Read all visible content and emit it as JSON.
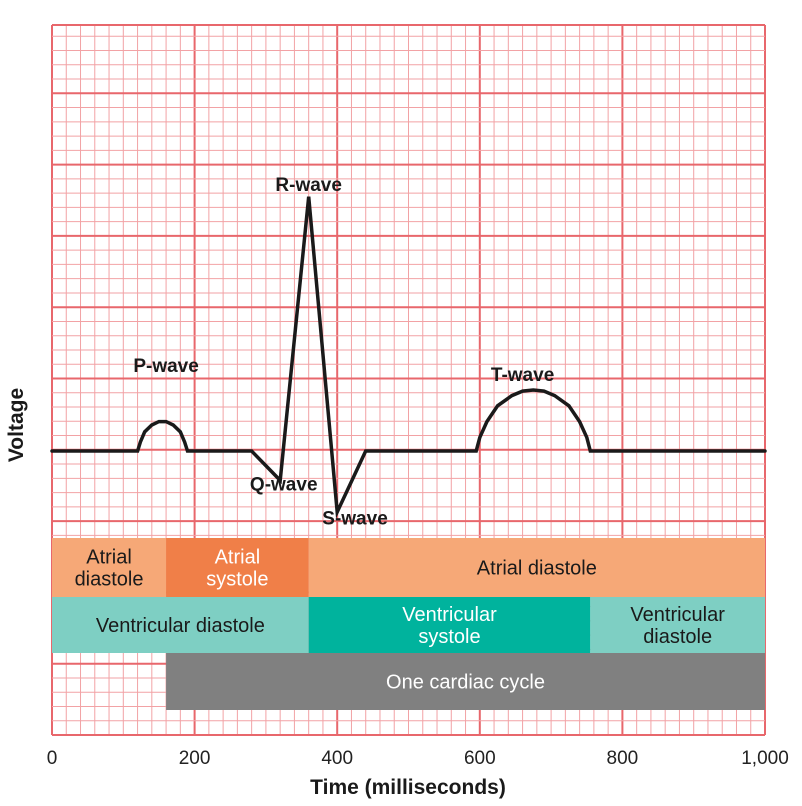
{
  "chart_data": {
    "type": "line",
    "title": "",
    "xlabel": "Time (milliseconds)",
    "ylabel": "Voltage",
    "xlim": [
      0,
      1000
    ],
    "ylim": [
      -10,
      16
    ],
    "grid": true,
    "x_ticks": [
      {
        "value": 0,
        "label": "0"
      },
      {
        "value": 200,
        "label": "200"
      },
      {
        "value": 400,
        "label": "400"
      },
      {
        "value": 600,
        "label": "600"
      },
      {
        "value": 800,
        "label": "800"
      },
      {
        "value": 1000,
        "label": "1,000"
      }
    ],
    "series": [
      {
        "name": "ECG trace",
        "points": [
          {
            "x": 0,
            "y": 0
          },
          {
            "x": 120,
            "y": 0
          },
          {
            "x": 124,
            "y": 0.8
          },
          {
            "x": 130,
            "y": 1.7
          },
          {
            "x": 140,
            "y": 2.3
          },
          {
            "x": 150,
            "y": 2.6
          },
          {
            "x": 160,
            "y": 2.6
          },
          {
            "x": 170,
            "y": 2.3
          },
          {
            "x": 180,
            "y": 1.7
          },
          {
            "x": 186,
            "y": 0.8
          },
          {
            "x": 190,
            "y": 0
          },
          {
            "x": 280,
            "y": 0
          },
          {
            "x": 320,
            "y": -2.6
          },
          {
            "x": 360,
            "y": 22.5
          },
          {
            "x": 400,
            "y": -5.4
          },
          {
            "x": 440,
            "y": 0
          },
          {
            "x": 595,
            "y": 0
          },
          {
            "x": 600,
            "y": 1.2
          },
          {
            "x": 610,
            "y": 2.6
          },
          {
            "x": 625,
            "y": 4.0
          },
          {
            "x": 645,
            "y": 4.9
          },
          {
            "x": 660,
            "y": 5.3
          },
          {
            "x": 675,
            "y": 5.4
          },
          {
            "x": 690,
            "y": 5.3
          },
          {
            "x": 705,
            "y": 4.9
          },
          {
            "x": 725,
            "y": 4.0
          },
          {
            "x": 740,
            "y": 2.6
          },
          {
            "x": 750,
            "y": 1.2
          },
          {
            "x": 755,
            "y": 0
          },
          {
            "x": 1000,
            "y": 0
          }
        ]
      }
    ],
    "annotations": [
      {
        "text": "P-wave",
        "x": 160,
        "y": 7
      },
      {
        "text": "R-wave",
        "x": 360,
        "y": 23
      },
      {
        "text": "Q-wave",
        "x": 325,
        "y": -3.5
      },
      {
        "text": "S-wave",
        "x": 425,
        "y": -6.5
      },
      {
        "text": "T-wave",
        "x": 660,
        "y": 6.2
      }
    ],
    "phase_bands": [
      {
        "row": 1,
        "label": [
          "Atrial",
          "diastole"
        ],
        "start": 0,
        "end": 160,
        "color": "#f6a877",
        "text_color": "#1a1a1a"
      },
      {
        "row": 1,
        "label": [
          "Atrial",
          "systole"
        ],
        "start": 160,
        "end": 360,
        "color": "#f07f48",
        "text_color": "#ffffff"
      },
      {
        "row": 1,
        "label": [
          "Atrial diastole"
        ],
        "start": 360,
        "end": 1000,
        "color": "#f6a877",
        "text_color": "#1a1a1a"
      },
      {
        "row": 2,
        "label": [
          "Ventricular diastole"
        ],
        "start": 0,
        "end": 360,
        "color": "#7ecfc3",
        "text_color": "#1a1a1a"
      },
      {
        "row": 2,
        "label": [
          "Ventricular",
          "systole"
        ],
        "start": 360,
        "end": 755,
        "color": "#00b39d",
        "text_color": "#ffffff"
      },
      {
        "row": 2,
        "label": [
          "Ventricular",
          "diastole"
        ],
        "start": 755,
        "end": 1000,
        "color": "#7ecfc3",
        "text_color": "#1a1a1a"
      },
      {
        "row": 3,
        "label": [
          "One cardiac cycle"
        ],
        "start": 160,
        "end": 1000,
        "color": "#808080",
        "text_color": "#ffffff"
      }
    ]
  },
  "colors": {
    "grid_minor": "#f2a2a5",
    "grid_major": "#e8676c",
    "trace": "#1a1a1a",
    "axis_text": "#1a1a1a"
  }
}
